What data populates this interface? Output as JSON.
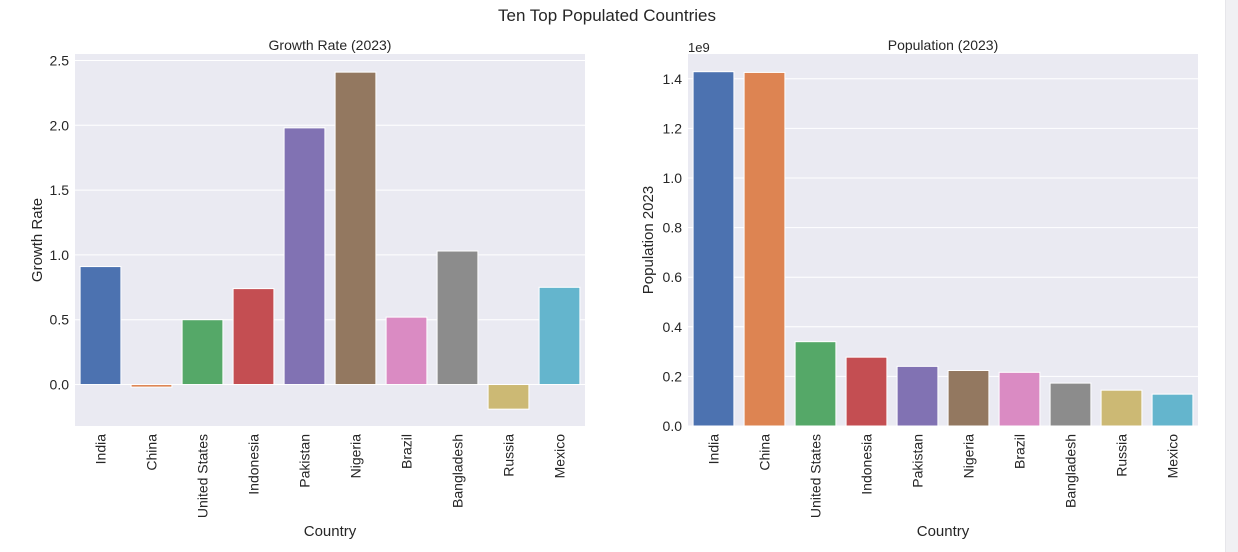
{
  "figure": {
    "suptitle": "Ten Top Populated Countries"
  },
  "palette": [
    "#4c72b0",
    "#dd8452",
    "#55a868",
    "#c44e52",
    "#8172b3",
    "#937860",
    "#da8bc3",
    "#8c8c8c",
    "#ccb974",
    "#64b5cd"
  ],
  "style": {
    "axes_bg": "#eaeaf2",
    "grid": "#ffffff",
    "text": "#262626"
  },
  "chart_data": [
    {
      "type": "bar",
      "title": "Growth Rate (2023)",
      "xlabel": "Country",
      "ylabel": "Growth Rate",
      "categories": [
        "India",
        "China",
        "United States",
        "Indonesia",
        "Pakistan",
        "Nigeria",
        "Brazil",
        "Bangladesh",
        "Russia",
        "Mexico"
      ],
      "values": [
        0.91,
        -0.02,
        0.5,
        0.74,
        1.98,
        2.41,
        0.52,
        1.03,
        -0.19,
        0.75
      ],
      "ylim": [
        -0.32,
        2.55
      ],
      "yticks": [
        0.0,
        0.5,
        1.0,
        1.5,
        2.0,
        2.5
      ],
      "ytick_labels": [
        "0.0",
        "0.5",
        "1.0",
        "1.5",
        "2.0",
        "2.5"
      ],
      "offset_text": "",
      "grid": true,
      "legend": "none"
    },
    {
      "type": "bar",
      "title": "Population (2023)",
      "xlabel": "Country",
      "ylabel": "Population 2023",
      "categories": [
        "India",
        "China",
        "United States",
        "Indonesia",
        "Pakistan",
        "Nigeria",
        "Brazil",
        "Bangladesh",
        "Russia",
        "Mexico"
      ],
      "values": [
        1428627663,
        1425671352,
        339996563,
        277534122,
        240485658,
        223804632,
        216422446,
        172954319,
        144444359,
        128455567
      ],
      "ylim": [
        0,
        1500000000.0
      ],
      "yticks": [
        0,
        200000000.0,
        400000000.0,
        600000000.0,
        800000000.0,
        1000000000.0,
        1200000000.0,
        1400000000.0
      ],
      "ytick_labels": [
        "0.0",
        "0.2",
        "0.4",
        "0.6",
        "0.8",
        "1.0",
        "1.2",
        "1.4"
      ],
      "offset_text": "1e9",
      "grid": true,
      "legend": "none"
    }
  ]
}
